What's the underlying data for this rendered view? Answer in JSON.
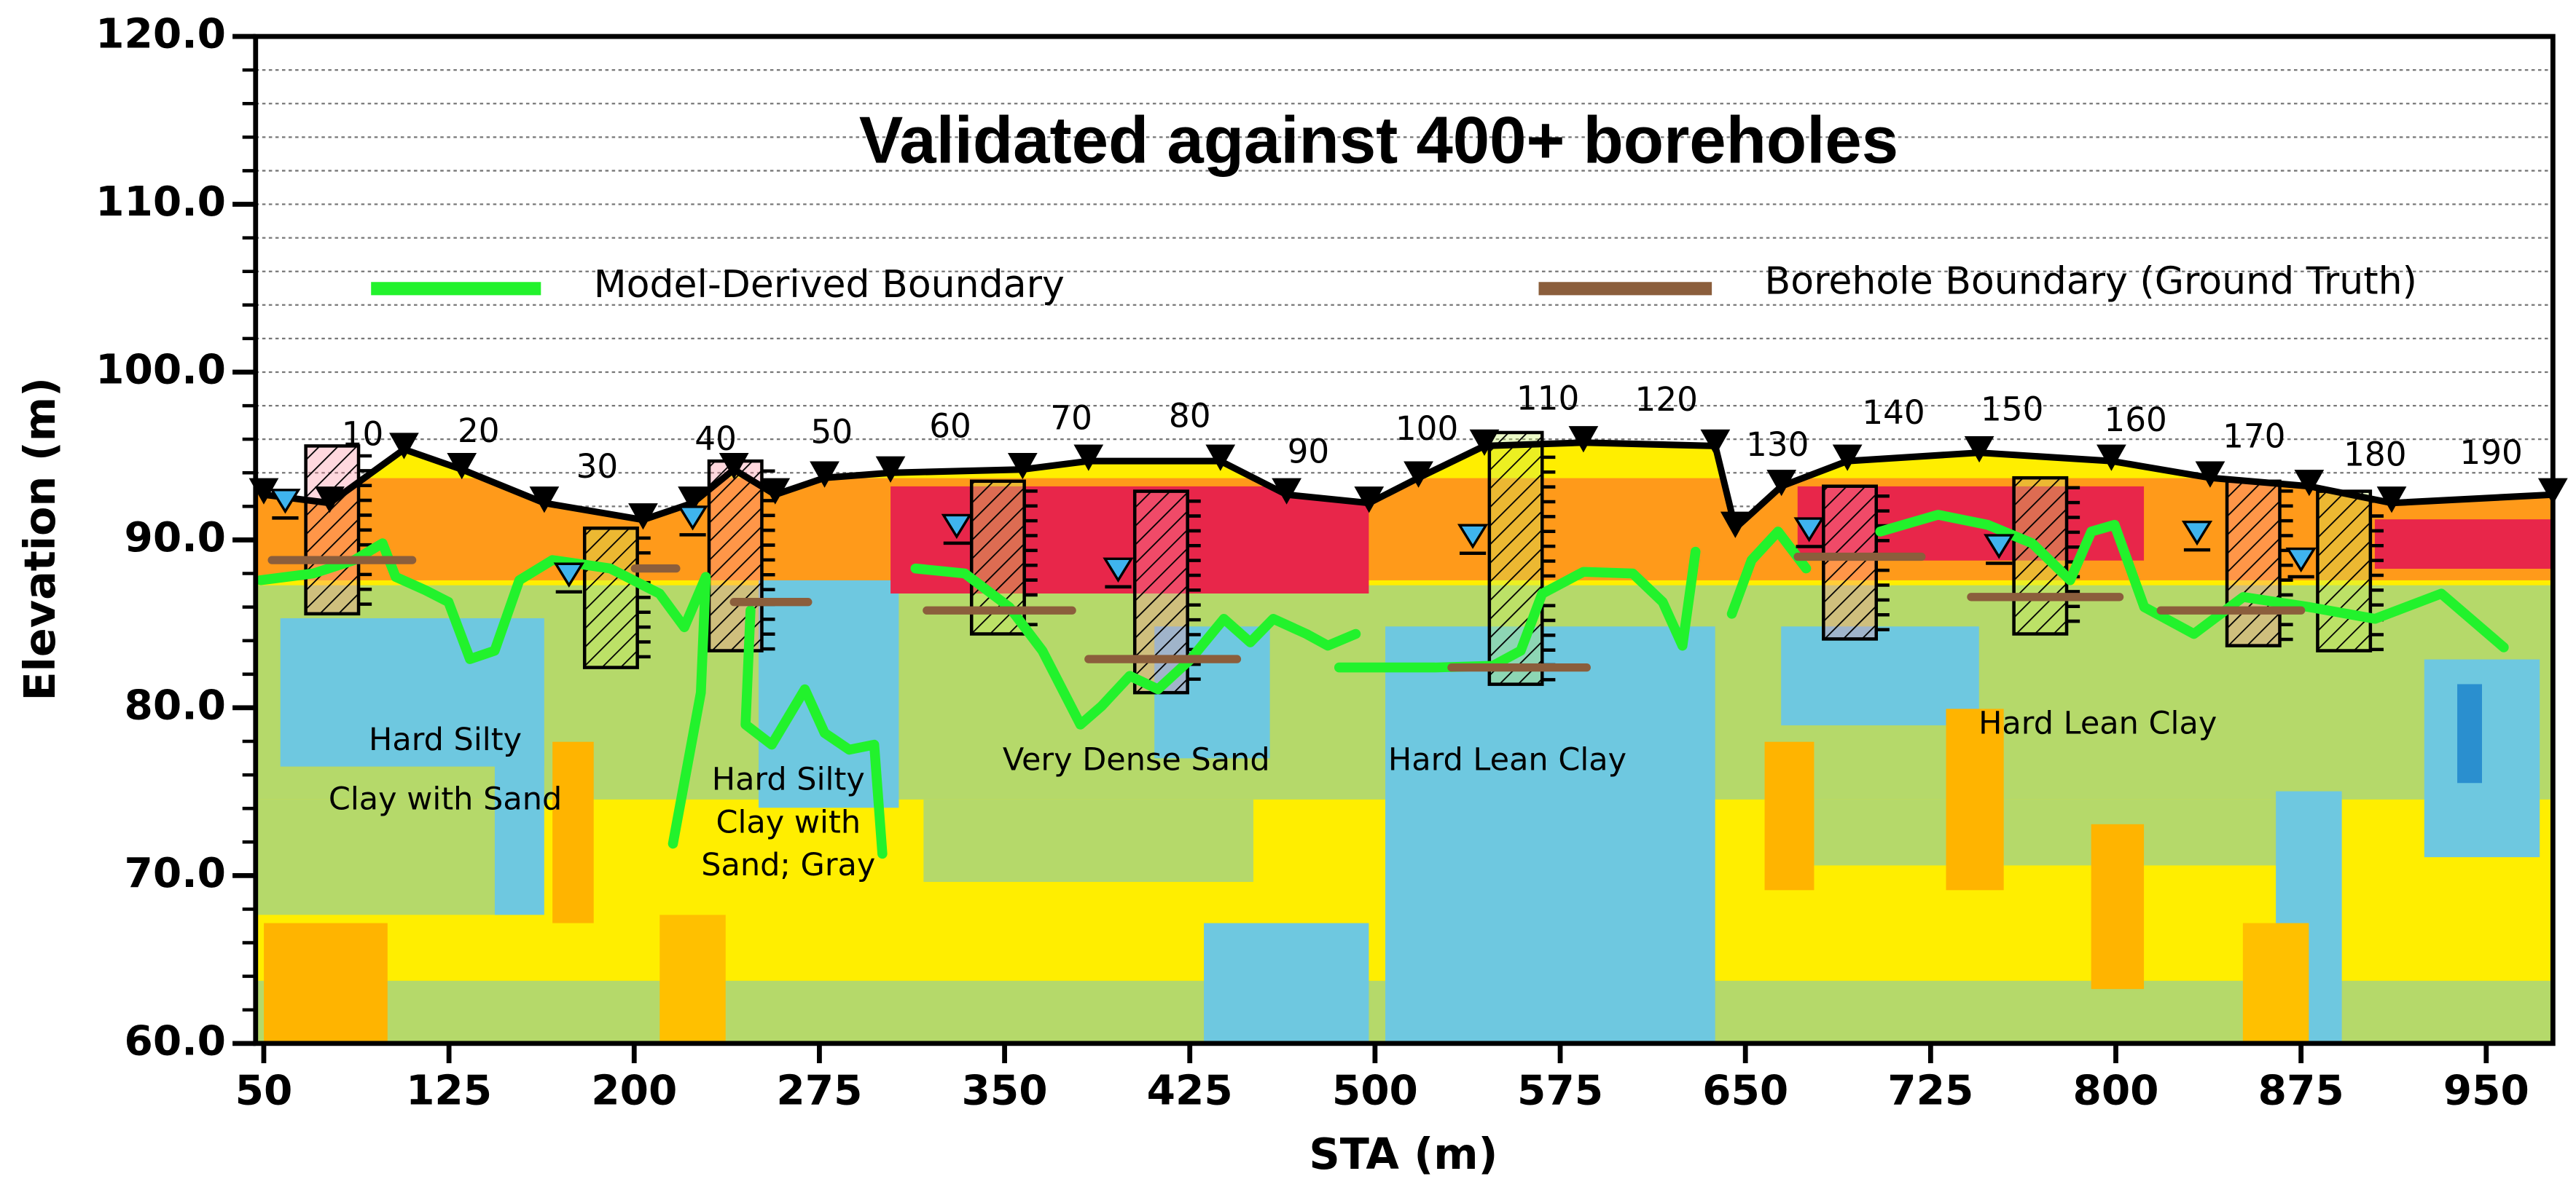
{
  "chart_data": {
    "type": "section",
    "title": "Validated against 400+ boreholes",
    "xlabel": "STA (m)",
    "ylabel": "Elevation (m)",
    "xlim": [
      46.7,
      977
    ],
    "ylim": [
      60,
      120
    ],
    "xticks": [
      50,
      125,
      200,
      275,
      350,
      425,
      500,
      575,
      650,
      725,
      800,
      875,
      950
    ],
    "yticks": [
      {
        "value": 60,
        "label": "60.0"
      },
      {
        "value": 70,
        "label": "70.0"
      },
      {
        "value": 80,
        "label": "80.0"
      },
      {
        "value": 90,
        "label": "90.0"
      },
      {
        "value": 100,
        "label": "100.0"
      },
      {
        "value": 110,
        "label": "110.0"
      },
      {
        "value": 120,
        "label": "120.0"
      }
    ],
    "minor_tick_step": 2,
    "grid": true,
    "legend": "top",
    "series": [
      {
        "name": "Model-Derived Boundary",
        "color": "#22f22c",
        "x": [
          48.7,
          70.0,
          86.7,
          98.1,
          103.4,
          115.5,
          124.8,
          133.5,
          143.5,
          153.5,
          166.9,
          190.3,
          210.3,
          220.3,
          229.0,
          227.0,
          215.7,
          null,
          247.1,
          245.1,
          255.7,
          269.1,
          277.1,
          287.1,
          297.2,
          300.5,
          null,
          313.9,
          333.9,
          351.9,
          365.3,
          380.7,
          389.3,
          400.7,
          412.1,
          425.4,
          438.8,
          449.5,
          458.8,
          472.2,
          480.9,
          492.2,
          null,
          485.5,
          524.3,
          547.7,
          559.0,
          567.7,
          584.4,
          604.4,
          616.5,
          624.5,
          629.8,
          null,
          644.5,
          652.5,
          663.2,
          674.6,
          null,
          704.6,
          728.0,
          748.1,
          766.1,
          781.5,
          790.1,
          799.5,
          811.5,
          831.6,
          851.6,
          878.3,
          905.0,
          931.8,
          957.1
        ],
        "values": [
          87.6,
          88.0,
          88.8,
          89.8,
          87.8,
          87.0,
          86.3,
          82.9,
          83.4,
          87.6,
          88.8,
          88.3,
          86.8,
          84.8,
          87.8,
          80.9,
          71.9,
          null,
          85.8,
          79.0,
          77.8,
          81.1,
          78.5,
          77.5,
          77.8,
          71.3,
          null,
          88.3,
          88.0,
          86.0,
          83.4,
          79.0,
          80.1,
          81.9,
          81.1,
          82.9,
          85.3,
          83.9,
          85.3,
          84.4,
          83.7,
          84.4,
          null,
          82.4,
          82.4,
          82.5,
          83.4,
          86.8,
          88.1,
          88.0,
          86.3,
          83.7,
          89.3,
          null,
          85.6,
          88.8,
          90.5,
          88.3,
          null,
          90.5,
          91.5,
          90.9,
          89.8,
          87.6,
          90.5,
          90.9,
          86.0,
          84.4,
          86.6,
          86.0,
          85.3,
          86.8,
          83.6
        ]
      },
      {
        "name": "Borehole Boundary (Ground Truth)",
        "color": "#8b5e3c",
        "x": [
          53.3,
          110.1,
          null,
          200.3,
          217.0,
          null,
          240.4,
          270.4,
          null,
          318.5,
          377.3,
          null,
          384.0,
          444.1,
          null,
          531.0,
          585.7,
          null,
          671.2,
          721.3,
          null,
          741.4,
          801.5,
          null,
          818.2,
          875.0
        ],
        "values": [
          88.8,
          88.8,
          null,
          88.3,
          88.3,
          null,
          86.3,
          86.3,
          null,
          85.8,
          85.8,
          null,
          82.9,
          82.9,
          null,
          82.4,
          82.4,
          null,
          89.0,
          89.0,
          null,
          86.6,
          86.6,
          null,
          85.8,
          85.8
        ]
      }
    ],
    "ground_surface": {
      "x": [
        50,
        76.7,
        106.8,
        130.2,
        163.6,
        203.6,
        223.7,
        240.4,
        257.1,
        277.1,
        303.8,
        357.3,
        384.0,
        437.4,
        464.2,
        497.6,
        517.6,
        544.3,
        584.4,
        637.8,
        645.9,
        664.6,
        691.3,
        744.7,
        798.2,
        838.2,
        878.3,
        911.7,
        977
      ],
      "values": [
        92.7,
        92.2,
        95.4,
        94.2,
        92.2,
        91.2,
        92.2,
        94.2,
        92.7,
        93.7,
        94.0,
        94.2,
        94.7,
        94.7,
        92.7,
        92.2,
        93.7,
        95.6,
        95.8,
        95.6,
        90.7,
        93.2,
        94.7,
        95.2,
        94.7,
        93.7,
        93.2,
        92.2,
        92.7
      ]
    },
    "stations": {
      "x": [
        90,
        137,
        185,
        233,
        280,
        328,
        377,
        425,
        473,
        521,
        570,
        618,
        663,
        710,
        758,
        808,
        856,
        905,
        952
      ],
      "labels": [
        10,
        20,
        30,
        40,
        50,
        60,
        70,
        80,
        90,
        100,
        110,
        120,
        130,
        140,
        150,
        160,
        170,
        180,
        190
      ]
    },
    "boreholes": {
      "x": [
        77.7,
        190.6,
        241.0,
        347.3,
        413.4,
        557.0,
        692.3,
        769.4,
        855.7,
        892.4
      ],
      "top": [
        95.6,
        90.7,
        94.7,
        93.5,
        92.9,
        96.4,
        93.2,
        93.7,
        93.5,
        92.9
      ],
      "bottom": [
        85.6,
        82.4,
        83.4,
        84.4,
        80.9,
        81.4,
        84.1,
        84.4,
        83.7,
        83.4
      ]
    },
    "water_table": {
      "x": [
        58.7,
        173.6,
        223.7,
        330.6,
        396.0,
        539.6,
        675.8,
        752.7,
        832.9,
        875.0
      ],
      "values": [
        91.7,
        87.3,
        90.7,
        90.2,
        87.6,
        89.6,
        90.0,
        89.0,
        89.8,
        88.2
      ]
    },
    "annotations": [
      {
        "lines": [
          "Hard Silty",
          "Clay with Sand"
        ]
      },
      {
        "lines": [
          "Hard Silty",
          "Clay with",
          "Sand; Gray"
        ]
      },
      {
        "lines": [
          "Very Dense Sand"
        ]
      },
      {
        "lines": [
          "Hard Lean Clay"
        ]
      },
      {
        "lines": [
          "Hard Lean Clay"
        ]
      }
    ]
  }
}
